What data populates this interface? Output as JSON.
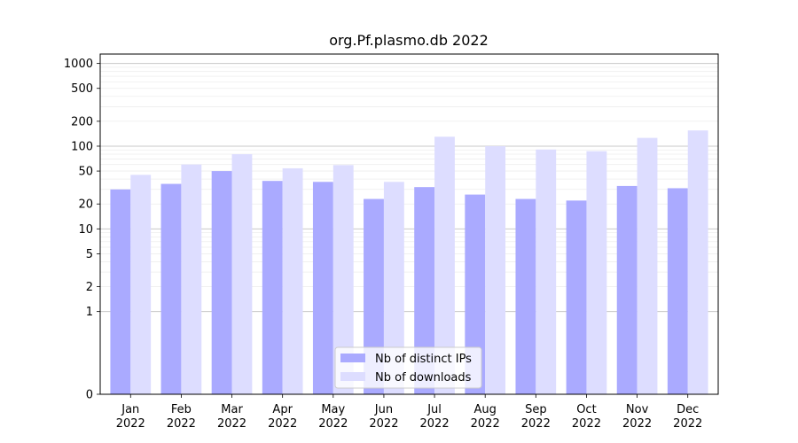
{
  "chart_data": {
    "type": "bar",
    "title": "org.Pf.plasmo.db 2022",
    "xlabel": "",
    "ylabel": "",
    "y_scale": "symlog",
    "ylim": [
      0,
      1300
    ],
    "y_ticks": [
      0,
      1,
      2,
      5,
      10,
      20,
      50,
      100,
      200,
      500,
      1000
    ],
    "categories": [
      [
        "Jan",
        "2022"
      ],
      [
        "Feb",
        "2022"
      ],
      [
        "Mar",
        "2022"
      ],
      [
        "Apr",
        "2022"
      ],
      [
        "May",
        "2022"
      ],
      [
        "Jun",
        "2022"
      ],
      [
        "Jul",
        "2022"
      ],
      [
        "Aug",
        "2022"
      ],
      [
        "Sep",
        "2022"
      ],
      [
        "Oct",
        "2022"
      ],
      [
        "Nov",
        "2022"
      ],
      [
        "Dec",
        "2022"
      ]
    ],
    "series": [
      {
        "name": "Nb of distinct IPs",
        "color": "#aaaaff",
        "values": [
          30,
          35,
          50,
          38,
          37,
          23,
          32,
          26,
          23,
          22,
          33,
          31
        ]
      },
      {
        "name": "Nb of downloads",
        "color": "#ddddff",
        "values": [
          45,
          60,
          80,
          54,
          59,
          37,
          130,
          100,
          91,
          87,
          126,
          155
        ]
      }
    ],
    "grid": true,
    "legend_position": "lower center"
  }
}
